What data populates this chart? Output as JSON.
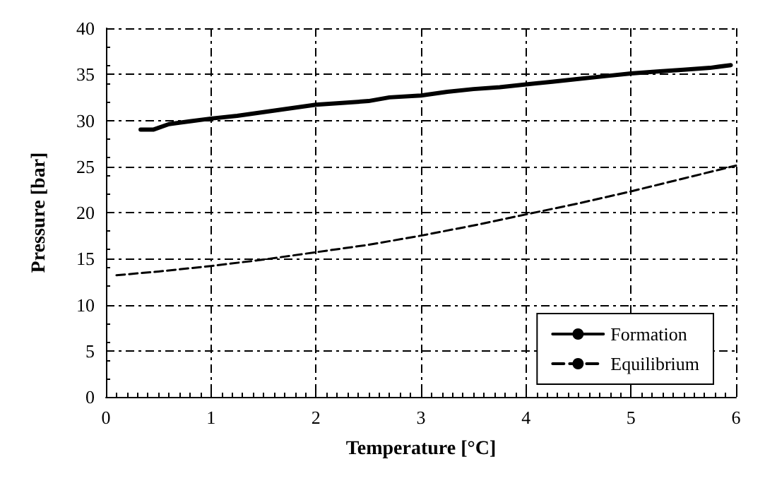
{
  "chart_data": {
    "type": "line",
    "xlabel": "Temperature [°C]",
    "ylabel": "Pressure [bar]",
    "xlim": [
      0,
      6
    ],
    "xticks": [
      0,
      1,
      2,
      3,
      4,
      5,
      6
    ],
    "ylim": [
      0,
      40
    ],
    "yticks": [
      0,
      5,
      10,
      15,
      20,
      25,
      30,
      35,
      40
    ],
    "grid": true,
    "legend": "bottom right",
    "marker": "none",
    "series": [
      {
        "name": "Formation",
        "color": "#000000",
        "line_style": "solid",
        "x": [
          0.33,
          0.45,
          0.6,
          0.8,
          1.0,
          1.25,
          1.5,
          1.75,
          2.0,
          2.25,
          2.5,
          2.7,
          3.0,
          3.25,
          3.5,
          3.75,
          4.0,
          4.25,
          4.5,
          4.75,
          5.0,
          5.25,
          5.5,
          5.75,
          5.95
        ],
        "values": [
          29.0,
          29.0,
          29.6,
          29.9,
          30.2,
          30.5,
          30.9,
          31.3,
          31.7,
          31.9,
          32.1,
          32.5,
          32.7,
          33.1,
          33.4,
          33.6,
          33.9,
          34.2,
          34.5,
          34.8,
          35.1,
          35.3,
          35.5,
          35.7,
          36.0
        ]
      },
      {
        "name": "Equilibrium",
        "color": "#000000",
        "line_style": "dashed",
        "x": [
          0.1,
          0.5,
          1.0,
          1.5,
          2.0,
          2.5,
          3.0,
          3.5,
          4.0,
          4.5,
          5.0,
          5.5,
          6.0
        ],
        "values": [
          13.2,
          13.6,
          14.2,
          14.9,
          15.7,
          16.5,
          17.5,
          18.6,
          19.8,
          21.0,
          22.3,
          23.7,
          25.1
        ]
      }
    ]
  }
}
